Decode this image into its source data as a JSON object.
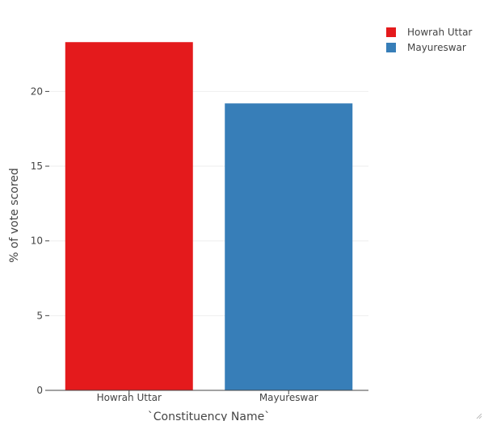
{
  "chart_data": {
    "type": "bar",
    "categories": [
      "Howrah Uttar",
      "Mayureswar"
    ],
    "values": [
      23.3,
      19.2
    ],
    "colors": [
      "#e41a1c",
      "#377eb8"
    ],
    "xlabel": "`Constituency Name`",
    "ylabel": "% of vote scored",
    "ylim": [
      0,
      24.5
    ],
    "yticks": [
      0,
      5,
      10,
      15,
      20
    ],
    "grid": true,
    "legend": {
      "position": "top-right",
      "entries": [
        {
          "label": "Howrah Uttar",
          "color": "#e41a1c"
        },
        {
          "label": "Mayureswar",
          "color": "#377eb8"
        }
      ]
    }
  }
}
